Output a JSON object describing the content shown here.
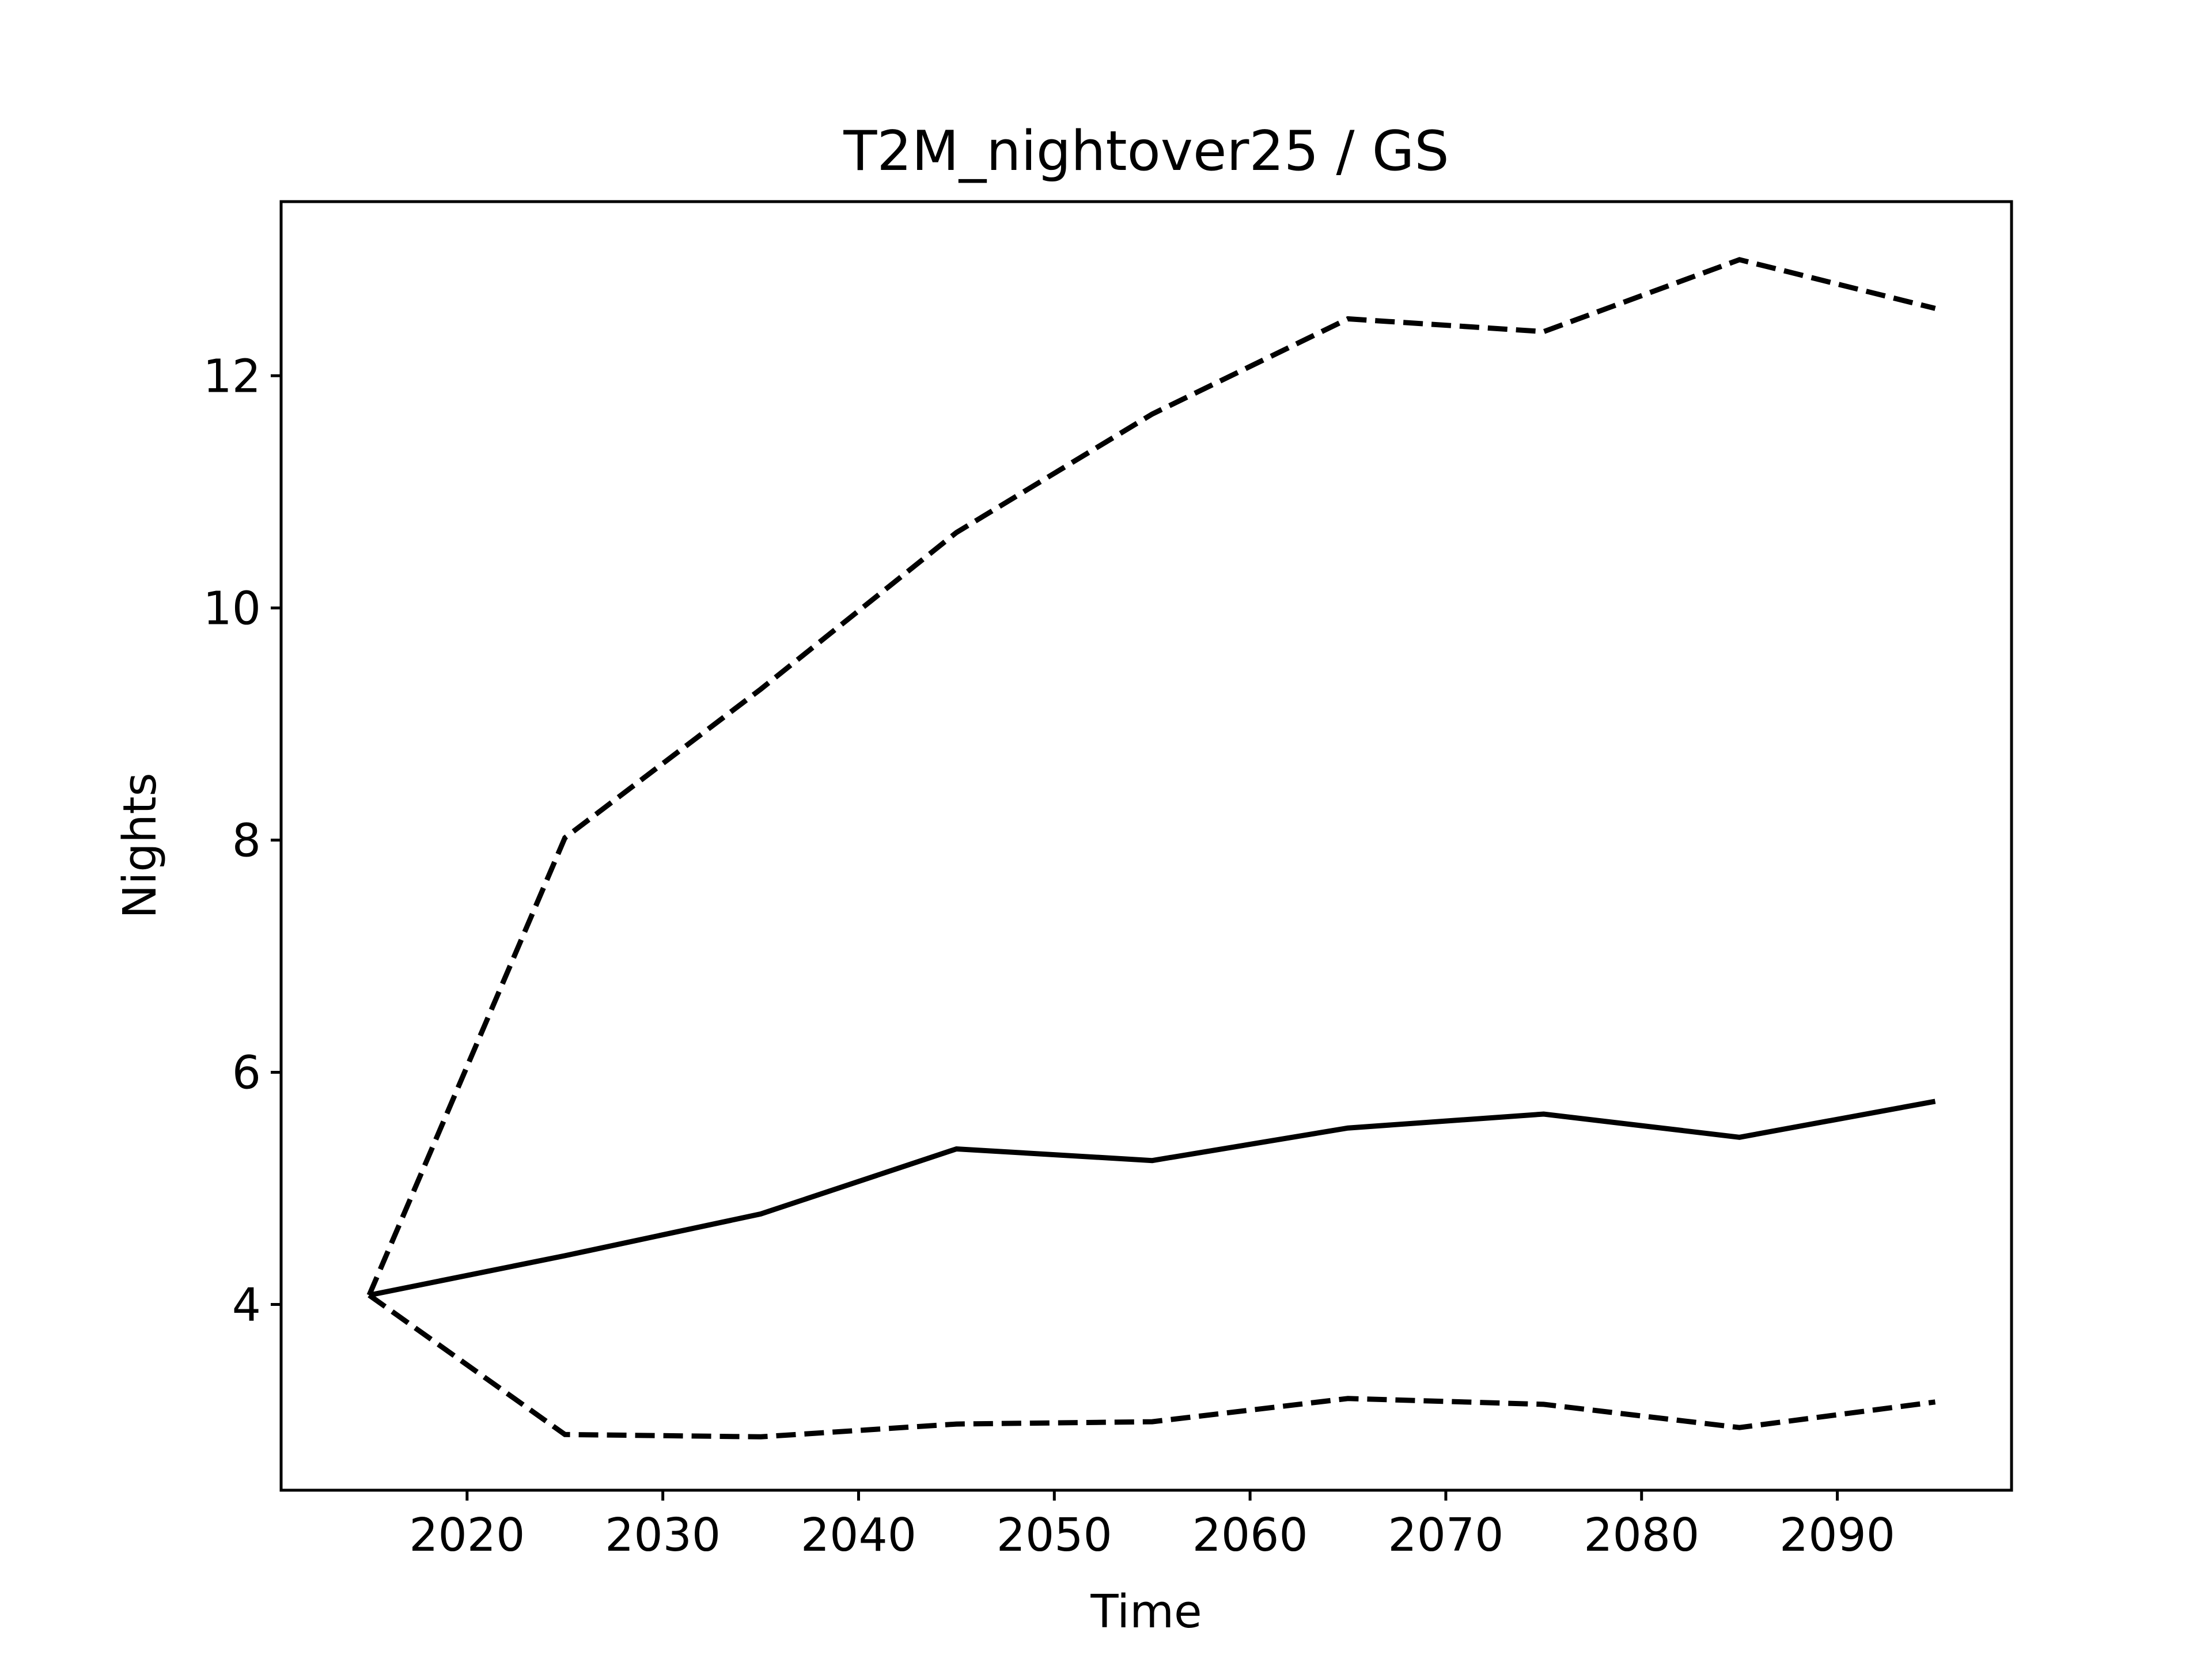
{
  "chart_data": {
    "type": "line",
    "title": "T2M_nightover25 / GS",
    "xlabel": "Time",
    "ylabel": "Nights",
    "xlim": [
      2010.5,
      2098.9
    ],
    "ylim": [
      2.4,
      13.5
    ],
    "xticks": [
      2020,
      2030,
      2040,
      2050,
      2060,
      2070,
      2080,
      2090
    ],
    "yticks": [
      4,
      6,
      8,
      10,
      12
    ],
    "x": [
      2015,
      2025,
      2035,
      2045,
      2055,
      2065,
      2075,
      2085,
      2095
    ],
    "series": [
      {
        "style": "solid",
        "values": [
          4.08,
          4.42,
          4.78,
          5.34,
          5.24,
          5.52,
          5.64,
          5.44,
          5.75
        ]
      },
      {
        "style": "dashed",
        "values": [
          4.08,
          8.02,
          9.3,
          10.65,
          11.67,
          12.49,
          12.38,
          13.0,
          12.58
        ]
      },
      {
        "style": "dashed",
        "values": [
          4.08,
          2.88,
          2.86,
          2.97,
          2.99,
          3.19,
          3.14,
          2.94,
          3.16
        ]
      }
    ],
    "grid": false,
    "legend": "none",
    "colors": {
      "lines": "#000000",
      "background": "#ffffff"
    }
  }
}
